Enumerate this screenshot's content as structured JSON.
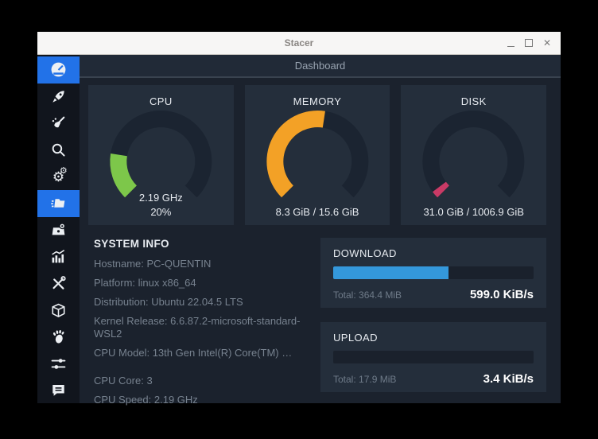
{
  "window": {
    "title": "Stacer",
    "controls": {
      "minimize": "minimize",
      "maximize": "maximize",
      "close": "✕"
    }
  },
  "header": {
    "title": "Dashboard"
  },
  "theme": {
    "accent_blue": "#2272e8",
    "card_bg": "#242e3b",
    "content_bg": "#1b222d",
    "sidebar_bg": "#11151d",
    "gauge_track": "#1b2431",
    "cpu_green": "#7dc74a",
    "memory_orange": "#f3a126",
    "disk_pink": "#c93a66",
    "progress_blue": "#3498db"
  },
  "sidebar": {
    "items": [
      {
        "icon": "dashboard-icon",
        "label": "dashboard",
        "active": true
      },
      {
        "icon": "startup-apps-icon",
        "label": "startup-apps",
        "active": false
      },
      {
        "icon": "system-cleaner-icon",
        "label": "system-cleaner",
        "active": false
      },
      {
        "icon": "search-icon",
        "label": "search",
        "active": false
      },
      {
        "icon": "services-icon",
        "label": "services",
        "active": false
      },
      {
        "icon": "processes-icon",
        "label": "processes",
        "active": true
      },
      {
        "icon": "uninstaller-icon",
        "label": "uninstaller",
        "active": false
      },
      {
        "icon": "resources-icon",
        "label": "resources",
        "active": false
      },
      {
        "icon": "helpers-icon",
        "label": "helpers",
        "active": false
      },
      {
        "icon": "package-icon",
        "label": "apt-repository",
        "active": false
      },
      {
        "icon": "gnome-foot-icon",
        "label": "gnome-settings",
        "active": false
      },
      {
        "icon": "sliders-icon",
        "label": "settings",
        "active": false
      },
      {
        "icon": "feedback-icon",
        "label": "feedback",
        "active": false
      }
    ]
  },
  "gauges": [
    {
      "title": "CPU",
      "percent": 20,
      "color": "#7dc74a",
      "line1": "2.19 GHz",
      "line2": "20%"
    },
    {
      "title": "MEMORY",
      "percent": 53.2,
      "color": "#f3a126",
      "line1": "8.3 GiB / 15.6 GiB",
      "line2": ""
    },
    {
      "title": "DISK",
      "percent": 3.1,
      "color": "#c93a66",
      "line1": "31.0 GiB / 1006.9 GiB",
      "line2": ""
    }
  ],
  "system_info": {
    "title": "SYSTEM INFO",
    "lines": [
      "Hostname: PC-QUENTIN",
      "Platform: linux x86_64",
      "Distribution: Ubuntu 22.04.5 LTS",
      "Kernel Release: 6.6.87.2-microsoft-standard-WSL2",
      "CPU Model: 13th Gen Intel(R) Core(TM) …",
      "CPU Core: 3",
      "CPU Speed: 2.19 GHz"
    ]
  },
  "network": {
    "download": {
      "title": "DOWNLOAD",
      "percent": 57.5,
      "bar_color": "#3498db",
      "total": "Total: 364.4 MiB",
      "speed": "599.0 KiB/s"
    },
    "upload": {
      "title": "UPLOAD",
      "percent": 0,
      "bar_color": "#3498db",
      "total": "Total: 17.9 MiB",
      "speed": "3.4 KiB/s"
    }
  }
}
